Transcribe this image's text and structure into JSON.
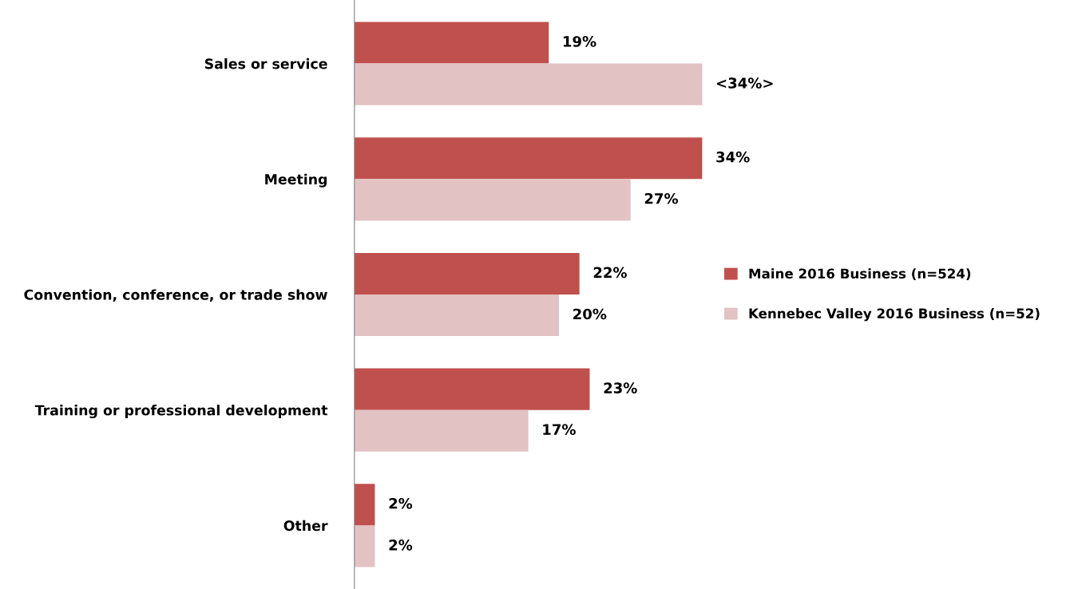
{
  "chart_data": {
    "type": "bar",
    "orientation": "horizontal",
    "categories": [
      "Sales or service",
      "Meeting",
      "Convention, conference, or trade show",
      "Training or professional development",
      "Other"
    ],
    "series": [
      {
        "name": "Maine 2016 Business (n=524)",
        "color": "#c0504d",
        "values": [
          19,
          34,
          22,
          23,
          2
        ],
        "value_labels": [
          "19%",
          "34%",
          "22%",
          "23%",
          "2%"
        ]
      },
      {
        "name": "Kennebec Valley 2016 Business (n=52)",
        "color": "#e2c2c3",
        "values": [
          34,
          27,
          20,
          17,
          2
        ],
        "value_labels": [
          "<34%>",
          "27%",
          "20%",
          "17%",
          "2%"
        ]
      }
    ],
    "legend": "right",
    "grid": false
  }
}
